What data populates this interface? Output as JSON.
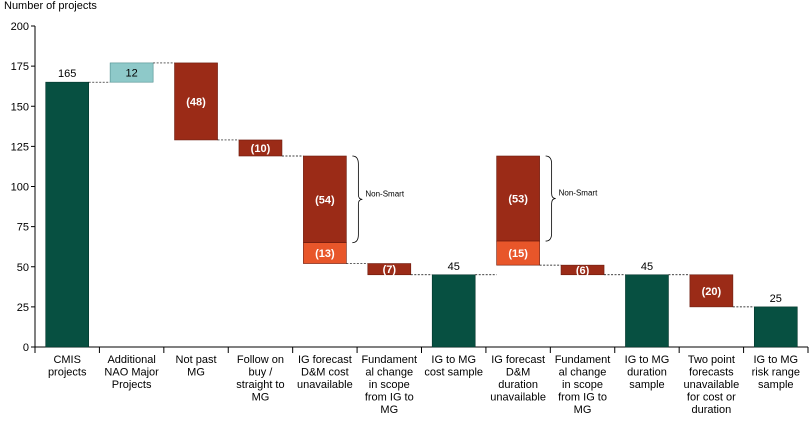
{
  "chart_data": {
    "type": "bar",
    "subtype": "waterfall",
    "ylabel": "Number of projects",
    "ylim": [
      0,
      200
    ],
    "yticks": [
      0,
      25,
      50,
      75,
      100,
      125,
      150,
      175,
      200
    ],
    "colors": {
      "total": "#075041",
      "increase": "#8ec9c9",
      "decrease": "#9b2b17",
      "decrease_light": "#e8562a",
      "connector": "#000000"
    },
    "categories": [
      {
        "label": [
          "CMIS",
          "projects"
        ],
        "kind": "total",
        "start": 0,
        "end": 165,
        "label_text": "165",
        "label_pos": "above"
      },
      {
        "label": [
          "Additional",
          "NAO Major",
          "Projects"
        ],
        "kind": "increase",
        "start": 165,
        "end": 177,
        "label_text": "12",
        "label_pos": "inside"
      },
      {
        "label": [
          "Not past",
          "MG"
        ],
        "kind": "decrease",
        "start": 177,
        "end": 129,
        "label_text": "(48)",
        "label_pos": "inside"
      },
      {
        "label": [
          "Follow on",
          "buy /",
          "straight to",
          "MG"
        ],
        "kind": "decrease",
        "start": 129,
        "end": 119,
        "label_text": "(10)",
        "label_pos": "inside"
      },
      {
        "label": [
          "IG forecast",
          "D&M cost",
          "unavailable"
        ],
        "kind": "stacked_decrease",
        "segments": [
          {
            "start": 119,
            "end": 65,
            "label_text": "(54)",
            "color": "decrease"
          },
          {
            "start": 65,
            "end": 52,
            "label_text": "(13)",
            "color": "decrease_light"
          }
        ],
        "annotation": "Non-Smart"
      },
      {
        "label": [
          "Fundament",
          "al change",
          "in scope",
          "from IG to",
          "MG"
        ],
        "kind": "decrease",
        "start": 52,
        "end": 45,
        "label_text": "(7)",
        "label_pos": "inside"
      },
      {
        "label": [
          "IG to MG",
          "cost sample"
        ],
        "kind": "total",
        "start": 0,
        "end": 45,
        "label_text": "45",
        "label_pos": "above"
      },
      {
        "label": [
          "IG forecast",
          "D&M",
          "duration",
          "unavailable"
        ],
        "kind": "stacked_decrease",
        "segments": [
          {
            "start": 119,
            "end": 66,
            "label_text": "(53)",
            "color": "decrease"
          },
          {
            "start": 66,
            "end": 51,
            "label_text": "(15)",
            "color": "decrease_light"
          }
        ],
        "annotation": "Non-Smart"
      },
      {
        "label": [
          "Fundament",
          "al change",
          "in scope",
          "from IG to",
          "MG"
        ],
        "kind": "decrease",
        "start": 51,
        "end": 45,
        "label_text": "(6)",
        "label_pos": "inside"
      },
      {
        "label": [
          "IG to MG",
          "duration",
          "sample"
        ],
        "kind": "total",
        "start": 0,
        "end": 45,
        "label_text": "45",
        "label_pos": "above"
      },
      {
        "label": [
          "Two point",
          "forecasts",
          "unavailable",
          "for cost or",
          "duration"
        ],
        "kind": "decrease",
        "start": 45,
        "end": 25,
        "label_text": "(20)",
        "label_pos": "inside"
      },
      {
        "label": [
          "IG to MG",
          "risk range",
          "sample"
        ],
        "kind": "total",
        "start": 0,
        "end": 25,
        "label_text": "25",
        "label_pos": "above"
      }
    ]
  }
}
